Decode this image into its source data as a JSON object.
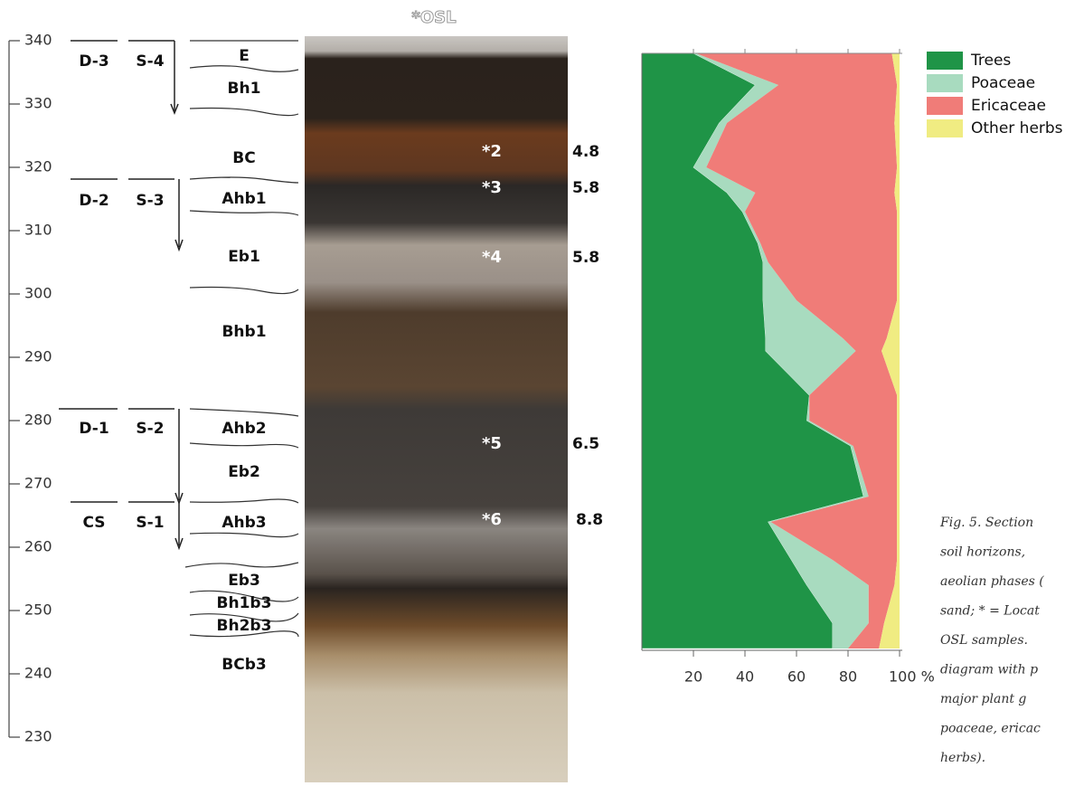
{
  "chart_data": {
    "type": "stacked-area",
    "x": [
      338,
      333,
      327,
      320,
      316,
      313,
      308,
      305,
      299,
      293,
      291,
      284,
      280,
      276,
      268,
      264,
      258,
      254,
      248,
      244
    ],
    "xlim": [
      340,
      230
    ],
    "xticks": [
      340,
      330,
      320,
      310,
      300,
      290,
      280,
      270,
      260,
      250,
      240,
      230
    ],
    "ylim": [
      0,
      100
    ],
    "yticks": [
      20,
      40,
      60,
      80,
      {
        "value": 100,
        "label": "100 %"
      }
    ],
    "series": [
      {
        "name": "Trees",
        "color": "#1f9447",
        "values": [
          20,
          44,
          30,
          20,
          33,
          39,
          45,
          47,
          47,
          48,
          48,
          65,
          64,
          81,
          86,
          49,
          58,
          64,
          74,
          74
        ]
      },
      {
        "name": "Poaceae",
        "color": "#a8dbbf",
        "values": [
          1,
          9,
          3,
          5,
          11,
          1,
          1,
          2,
          13,
          30,
          35,
          0,
          1,
          1,
          2,
          1,
          16,
          24,
          14,
          6
        ]
      },
      {
        "name": "Ericaceae",
        "color": "#f07c78",
        "values": [
          76,
          46,
          65,
          74,
          54,
          59,
          53,
          50,
          39,
          17,
          10,
          34,
          34,
          17,
          11,
          49,
          25,
          10,
          6,
          12
        ]
      },
      {
        "name": "Other herbs",
        "color": "#f0ec82",
        "values": [
          3,
          1,
          2,
          1,
          2,
          1,
          1,
          1,
          1,
          5,
          7,
          1,
          1,
          1,
          1,
          1,
          1,
          2,
          6,
          8
        ]
      }
    ]
  },
  "units": {
    "depositional": [
      "D-3",
      "D-2",
      "D-1",
      "CS"
    ],
    "soil": [
      "S-4",
      "S-3",
      "S-2",
      "S-1"
    ]
  },
  "horizons": [
    "E",
    "Bh1",
    "BC",
    "Ahb1",
    "Eb1",
    "Bhb1",
    "Ahb2",
    "Eb2",
    "Ahb3",
    "Eb3",
    "Bh1b3",
    "Bh2b3",
    "BCb3"
  ],
  "osl": {
    "title": "*OSL",
    "samples": [
      {
        "label": "*2",
        "age": 4.8
      },
      {
        "label": "*3",
        "age": 5.8
      },
      {
        "label": "*4",
        "age": 5.8
      },
      {
        "label": "*5",
        "age": 6.5
      },
      {
        "label": "*6",
        "age": 8.8
      }
    ]
  },
  "caption_lines": [
    "Fig. 5.  Section",
    "soil  horizons,  ",
    "aeolian phases (",
    "sand; * = Locat",
    "OSL  samples.  ",
    "diagram  with  p",
    "major  plant  g",
    "poaceae, ericac",
    "herbs)."
  ]
}
